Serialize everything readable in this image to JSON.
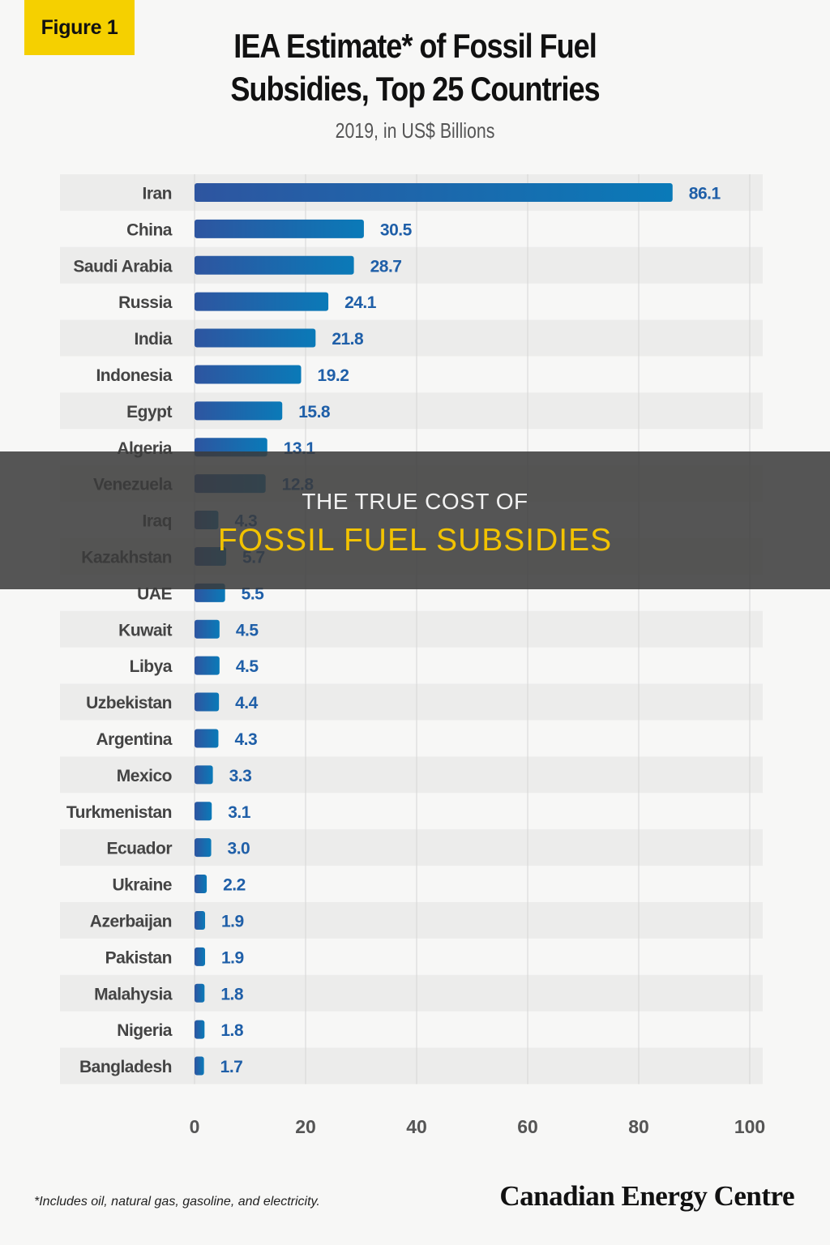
{
  "badge": {
    "label": "Figure 1"
  },
  "title_line1": "IEA Estimate* of Fossil Fuel",
  "title_line2": "Subsidies, Top 25 Countries",
  "subtitle": "2019, in US$ Billions",
  "footnote": "*Includes oil, natural gas, gasoline, and electricity.",
  "brand": "Canadian Energy Centre",
  "banner": {
    "line1": "THE TRUE COST OF",
    "line2": "FOSSIL FUEL SUBSIDIES"
  },
  "colors": {
    "bar_start": "#2e55a0",
    "bar_end": "#0a7ab8",
    "value_text": "#1f5fa8",
    "stripe": "#ececeb",
    "grid": "#d6d6d6",
    "label_text": "#444444",
    "tick_text": "#555555"
  },
  "chart_data": {
    "type": "bar",
    "orientation": "horizontal",
    "categories": [
      "Iran",
      "China",
      "Saudi Arabia",
      "Russia",
      "India",
      "Indonesia",
      "Egypt",
      "Algeria",
      "Venezuela",
      "Iraq",
      "Kazakhstan",
      "UAE",
      "Kuwait",
      "Libya",
      "Uzbekistan",
      "Argentina",
      "Mexico",
      "Turkmenistan",
      "Ecuador",
      "Ukraine",
      "Azerbaijan",
      "Pakistan",
      "Malahysia",
      "Nigeria",
      "Bangladesh"
    ],
    "values": [
      86.1,
      30.5,
      28.7,
      24.1,
      21.8,
      19.2,
      15.8,
      13.1,
      12.8,
      4.3,
      5.7,
      5.5,
      4.5,
      4.5,
      4.4,
      4.3,
      3.3,
      3.1,
      3.0,
      2.2,
      1.9,
      1.9,
      1.8,
      1.8,
      1.7
    ],
    "value_labels": [
      "86.1",
      "30.5",
      "28.7",
      "24.1",
      "21.8",
      "19.2",
      "15.8",
      "13.1",
      "12.8",
      "4.3",
      "5.7",
      "5.5",
      "4.5",
      "4.5",
      "4.4",
      "4.3",
      "3.3",
      "3.1",
      "3.0",
      "2.2",
      "1.9",
      "1.9",
      "1.8",
      "1.8",
      "1.7"
    ],
    "xlim": [
      0,
      100
    ],
    "xticks": [
      0,
      20,
      40,
      60,
      80,
      100
    ],
    "xtick_labels": [
      "0",
      "20",
      "40",
      "60",
      "80",
      "100"
    ],
    "grid": true
  }
}
